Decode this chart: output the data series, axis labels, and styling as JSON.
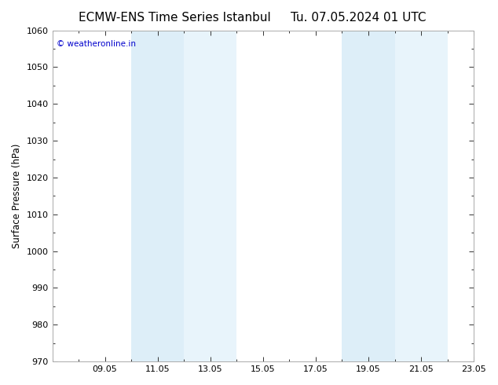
{
  "title_left": "ECMW-ENS Time Series Istanbul",
  "title_right": "Tu. 07.05.2024 01 UTC",
  "ylabel": "Surface Pressure (hPa)",
  "ylim": [
    970,
    1060
  ],
  "yticks": [
    970,
    980,
    990,
    1000,
    1010,
    1020,
    1030,
    1040,
    1050,
    1060
  ],
  "xlim": [
    7,
    23
  ],
  "xtick_positions": [
    9,
    11,
    13,
    15,
    17,
    19,
    21,
    23
  ],
  "xtick_labels": [
    "09.05",
    "11.05",
    "13.05",
    "15.05",
    "17.05",
    "19.05",
    "21.05",
    "23.05"
  ],
  "shaded_bands": [
    {
      "xmin": 10,
      "xmax": 12,
      "color": "#ddeef8"
    },
    {
      "xmin": 12,
      "xmax": 14,
      "color": "#e8f4fb"
    },
    {
      "xmin": 18,
      "xmax": 20,
      "color": "#ddeef8"
    },
    {
      "xmin": 20,
      "xmax": 22,
      "color": "#e8f4fb"
    }
  ],
  "plot_bg_color": "#ffffff",
  "fig_bg_color": "#ffffff",
  "watermark": "© weatheronline.in",
  "watermark_color": "#0000cc",
  "tick_color": "#333333",
  "title_fontsize": 11,
  "label_fontsize": 8.5,
  "tick_fontsize": 8
}
